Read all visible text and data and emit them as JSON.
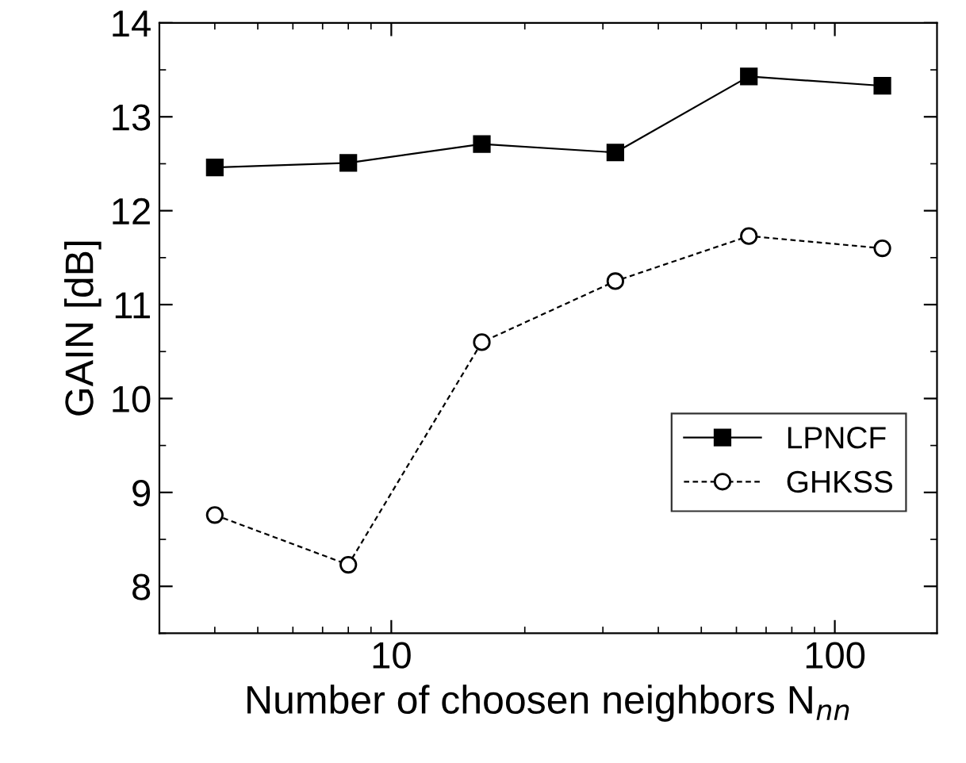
{
  "chart_data": {
    "type": "line",
    "xlabel": "Number of choosen neighbors N$_{nn}$",
    "ylabel": "GAIN [dB]",
    "x": [
      4,
      8,
      16,
      32,
      64,
      128
    ],
    "series": [
      {
        "name": "LPNCF",
        "color": "#000000",
        "marker": "square",
        "line_style": "solid",
        "values": [
          12.46,
          12.51,
          12.71,
          12.62,
          13.43,
          13.33
        ]
      },
      {
        "name": "GHKSS",
        "color": "#000000",
        "marker": "circle",
        "line_style": "dashed",
        "values": [
          8.76,
          8.23,
          10.6,
          11.25,
          11.73,
          11.6
        ]
      }
    ],
    "log": "x",
    "xlim": [
      3,
      170
    ],
    "xticks": [
      10,
      100
    ],
    "ylim": [
      7.5,
      14
    ],
    "yticks": [
      8,
      9,
      10,
      11,
      12,
      13,
      14
    ],
    "grid": false,
    "legend": "right"
  }
}
